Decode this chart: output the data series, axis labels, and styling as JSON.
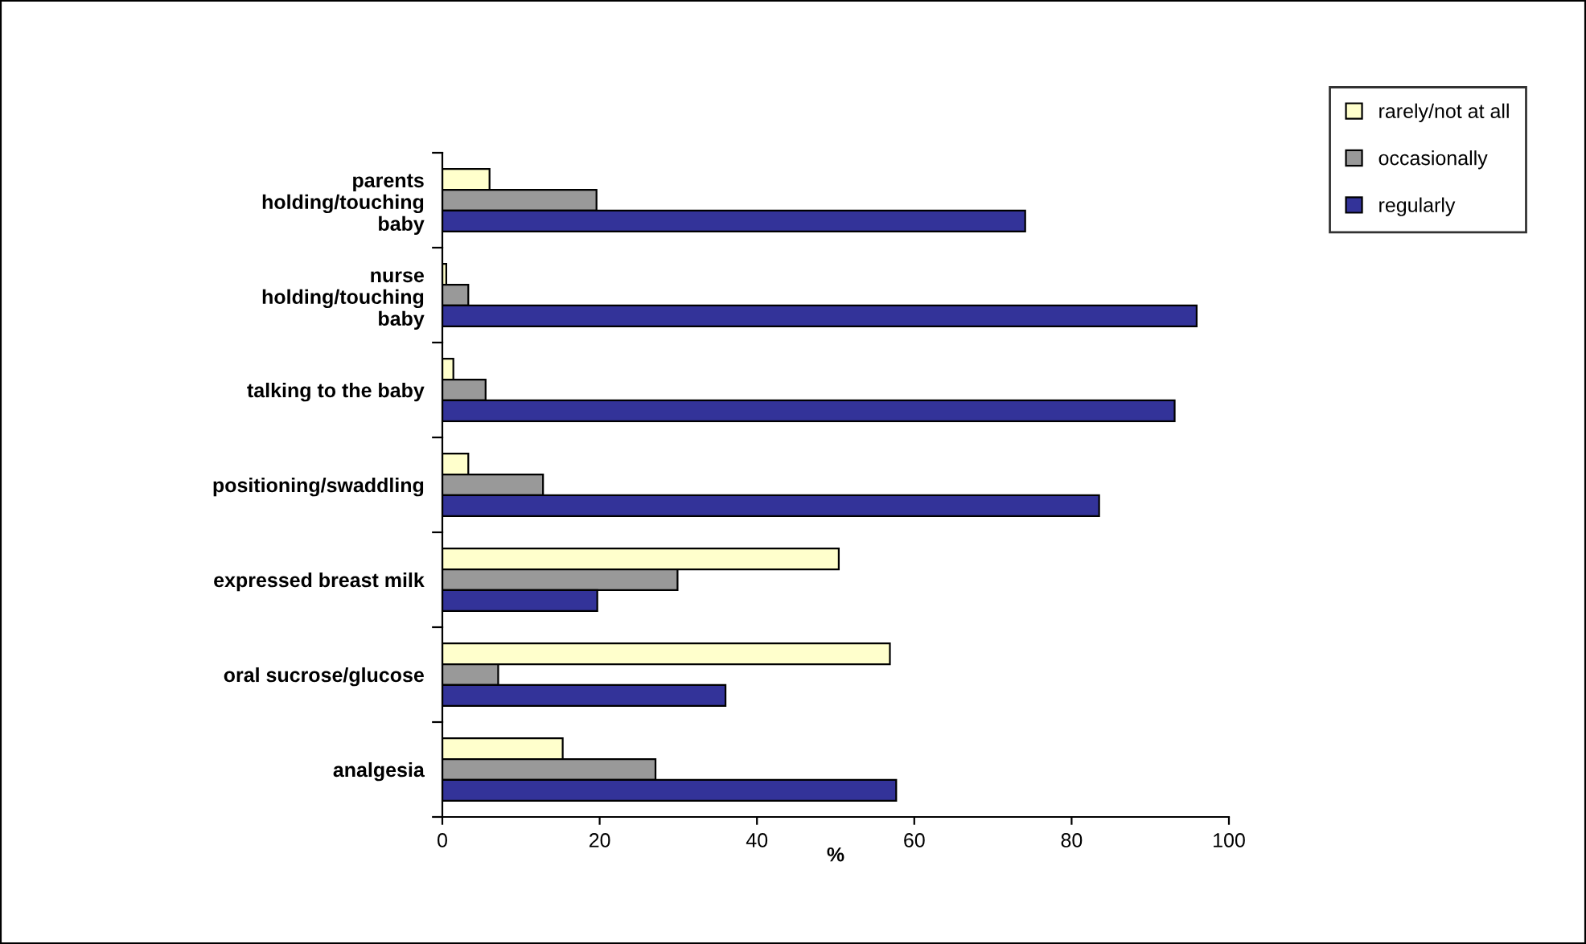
{
  "chart_data": {
    "type": "bar",
    "orientation": "horizontal",
    "xlabel": "%",
    "categories": [
      "parents\nholding/touching\nbaby",
      "nurse\nholding/touching\nbaby",
      "talking to the baby",
      "positioning/swaddling",
      "expressed breast milk",
      "oral sucrose/glucose",
      "analgesia"
    ],
    "series": [
      {
        "name": "rarely/not at all",
        "color": "#ffffcc",
        "values": [
          6.0,
          0.5,
          1.4,
          3.3,
          50.4,
          56.9,
          15.3
        ]
      },
      {
        "name": "occasionally",
        "color": "#999999",
        "values": [
          19.6,
          3.3,
          5.5,
          12.8,
          29.9,
          7.1,
          27.1
        ]
      },
      {
        "name": "regularly",
        "color": "#333399",
        "values": [
          74.1,
          95.9,
          93.1,
          83.5,
          19.7,
          36.0,
          57.7
        ]
      }
    ],
    "xlim": [
      0,
      100
    ],
    "xticks": [
      0,
      20,
      40,
      60,
      80,
      100
    ],
    "grid": false,
    "legend": "top right"
  }
}
